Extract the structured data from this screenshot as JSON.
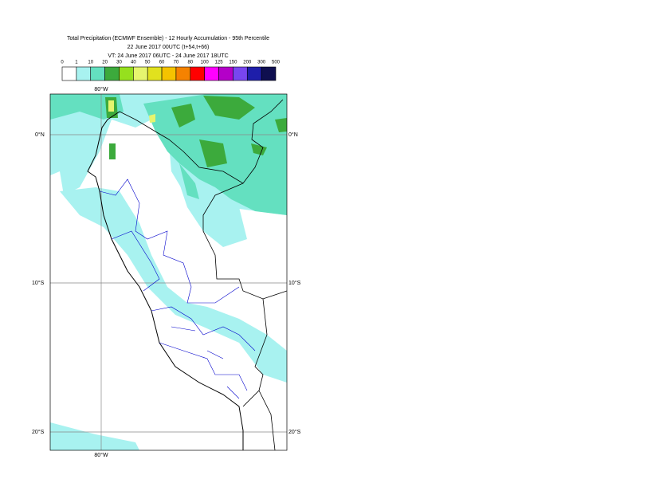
{
  "header": {
    "title_lines": [
      "Total Precipitation (ECMWF Ensemble) - 12 Hourly Accumulation - 95th Percentile",
      "22 June 2017 00UTC (t+54,t+66)",
      "VT: 24 June 2017 06UTC - 24 June 2017 18UTC"
    ]
  },
  "colorbar": {
    "labels": [
      0,
      1,
      10,
      20,
      30,
      40,
      50,
      60,
      70,
      80,
      100,
      125,
      150,
      200,
      300,
      500
    ],
    "colors": [
      "#ffffff",
      "#a8f2f0",
      "#64e0c0",
      "#3caa3c",
      "#96e01e",
      "#e6f56e",
      "#e1e11e",
      "#f5c300",
      "#f58200",
      "#ff0000",
      "#ff00ff",
      "#b400c8",
      "#7846f0",
      "#1e1eaa",
      "#0f0f50"
    ]
  },
  "map": {
    "lon_labels": [
      "80°W",
      "80°W"
    ],
    "lat_labels": [
      "0°N",
      "10°S",
      "20°S"
    ]
  }
}
